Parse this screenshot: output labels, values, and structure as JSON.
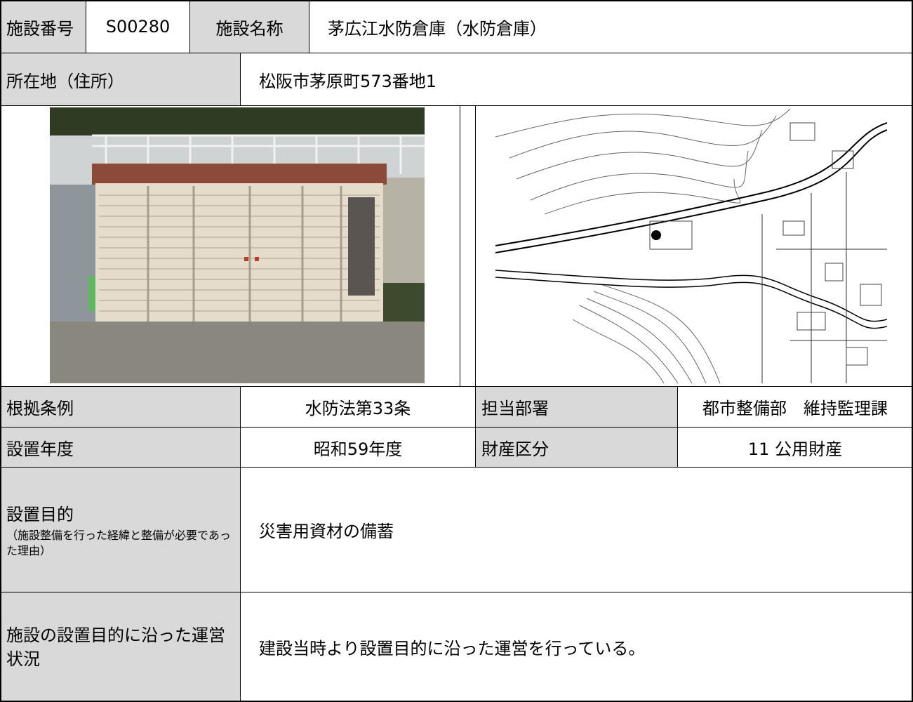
{
  "facility": {
    "number_label": "施設番号",
    "number": "S00280",
    "name_label": "施設名称",
    "name": "茅広江水防倉庫（水防倉庫）",
    "address_label": "所在地（住所）",
    "address": "松阪市茅原町573番地1"
  },
  "details": {
    "law_label": "根拠条例",
    "law": "水防法第33条",
    "department_label": "担当部署",
    "department": "都市整備部　維持監理課",
    "year_label": "設置年度",
    "year": "昭和59年度",
    "property_label": "財産区分",
    "property": "11 公用財産"
  },
  "purpose": {
    "label": "設置目的",
    "note": "（施設整備を行った経緯と整備が必要であった理由）",
    "text": "災害用資材の備蓄"
  },
  "operation": {
    "label": "施設の設置目的に沿った運営状況",
    "text": "建設当時より設置目的に沿った運営を行っている。"
  }
}
